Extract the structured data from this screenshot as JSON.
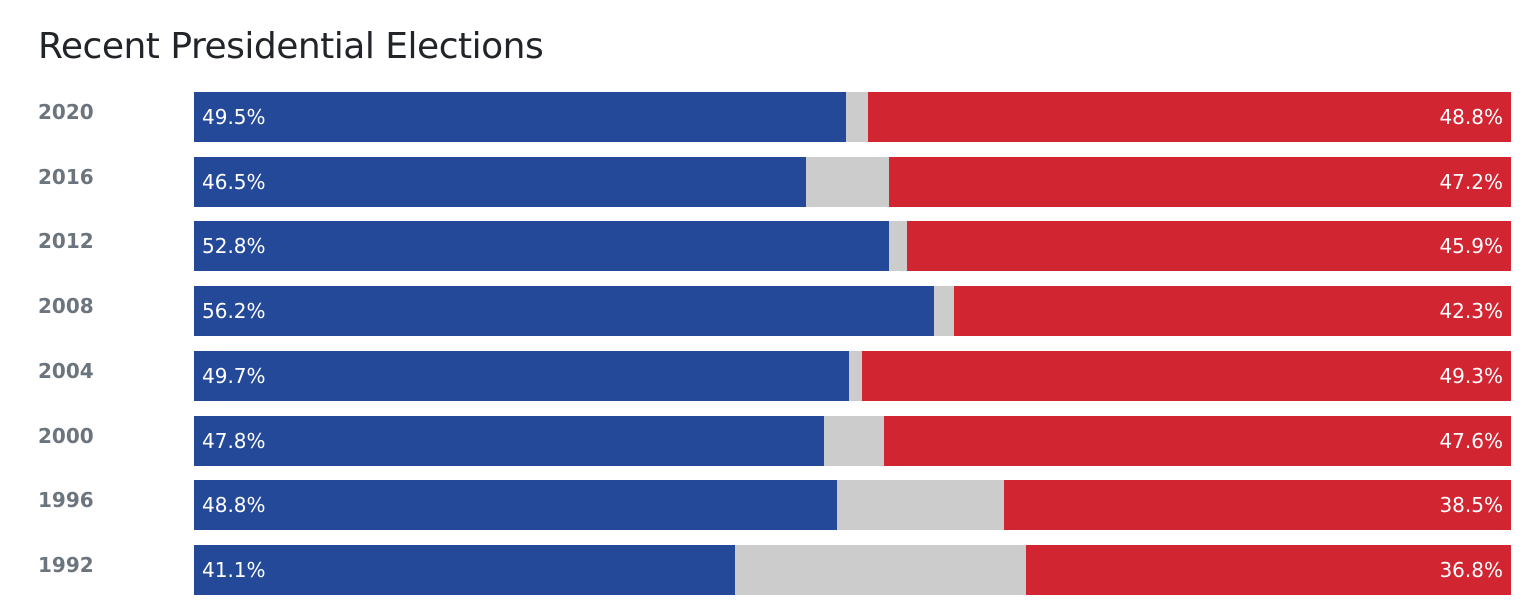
{
  "chart_data": {
    "type": "bar",
    "stacked": true,
    "orientation": "horizontal",
    "title": "Recent Presidential Elections",
    "categories": [
      "2020",
      "2016",
      "2012",
      "2008",
      "2004",
      "2000",
      "1996",
      "1992"
    ],
    "series": [
      {
        "values": [
          49.5,
          46.5,
          52.8,
          56.2,
          49.7,
          47.8,
          48.8,
          41.1
        ],
        "color": "#244999"
      },
      {
        "values": [
          1.7,
          6.3,
          1.3,
          1.5,
          1.0,
          4.6,
          12.7,
          22.1
        ],
        "color": "#cccccc"
      },
      {
        "values": [
          48.8,
          47.2,
          45.9,
          42.3,
          49.3,
          47.6,
          38.5,
          36.8
        ],
        "color": "#d22532"
      }
    ],
    "xlim": [
      0,
      100
    ],
    "unit": "%",
    "grid": false,
    "legend": "none"
  }
}
